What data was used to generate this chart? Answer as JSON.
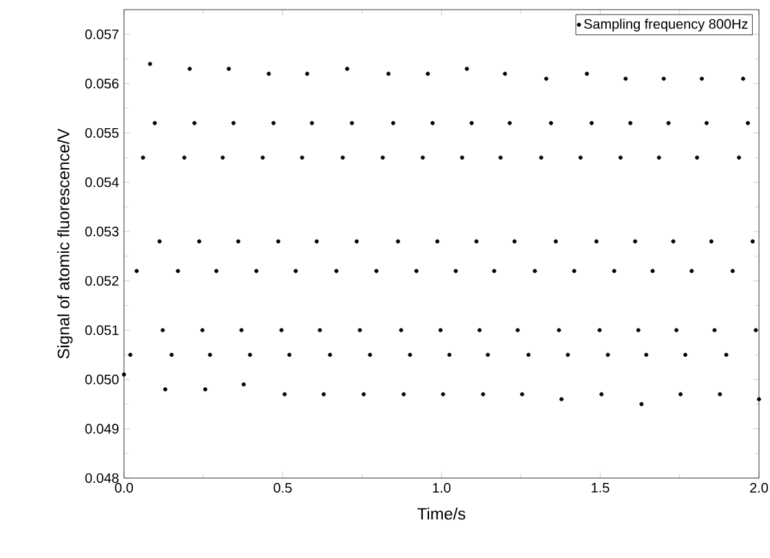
{
  "chart_data": {
    "type": "scatter",
    "xlabel": "Time/s",
    "ylabel": "Signal of atomic fluorescence/V",
    "xlim": [
      0,
      2.0
    ],
    "ylim": [
      0.048,
      0.0575
    ],
    "xticks": [
      {
        "value": 0,
        "label": "0.0"
      },
      0.5,
      {
        "value": 1,
        "label": "1.0"
      },
      1.5,
      {
        "value": 2,
        "label": "2.0"
      }
    ],
    "yticks": [
      0.048,
      0.049,
      {
        "value": 0.05,
        "label": "0.050"
      },
      0.051,
      0.052,
      0.053,
      0.054,
      0.055,
      0.056,
      0.057
    ],
    "legend": "top right",
    "marker": "circle",
    "grid": false,
    "series": [
      {
        "name": "Sampling frequency 800Hz",
        "color": "#000000",
        "x": [
          0,
          0.02,
          0.04,
          0.06,
          0.082,
          0.097,
          0.112,
          0.122,
          0.13,
          0.15,
          0.17,
          0.19,
          0.207,
          0.222,
          0.237,
          0.247,
          0.256,
          0.271,
          0.291,
          0.311,
          0.33,
          0.345,
          0.36,
          0.37,
          0.377,
          0.397,
          0.417,
          0.437,
          0.456,
          0.471,
          0.486,
          0.496,
          0.506,
          0.521,
          0.541,
          0.561,
          0.577,
          0.592,
          0.607,
          0.617,
          0.629,
          0.649,
          0.669,
          0.689,
          0.703,
          0.718,
          0.733,
          0.743,
          0.755,
          0.775,
          0.795,
          0.815,
          0.833,
          0.848,
          0.863,
          0.873,
          0.881,
          0.901,
          0.921,
          0.941,
          0.957,
          0.972,
          0.987,
          0.997,
          1.005,
          1.025,
          1.045,
          1.065,
          1.08,
          1.095,
          1.11,
          1.12,
          1.131,
          1.146,
          1.166,
          1.186,
          1.2,
          1.215,
          1.23,
          1.24,
          1.254,
          1.274,
          1.294,
          1.314,
          1.33,
          1.345,
          1.36,
          1.37,
          1.378,
          1.398,
          1.418,
          1.438,
          1.458,
          1.473,
          1.488,
          1.498,
          1.504,
          1.524,
          1.544,
          1.564,
          1.58,
          1.595,
          1.61,
          1.62,
          1.63,
          1.645,
          1.665,
          1.685,
          1.7,
          1.715,
          1.73,
          1.74,
          1.753,
          1.768,
          1.788,
          1.805,
          1.82,
          1.835,
          1.85,
          1.86,
          1.877,
          1.897,
          1.917,
          1.937,
          1.95,
          1.965,
          1.98,
          1.99,
          2.0
        ],
        "values": [
          0.0501,
          0.0505,
          0.0522,
          0.0545,
          0.0564,
          0.0552,
          0.0528,
          0.051,
          0.0498,
          0.0505,
          0.0522,
          0.0545,
          0.0563,
          0.0552,
          0.0528,
          0.051,
          0.0498,
          0.0505,
          0.0522,
          0.0545,
          0.0563,
          0.0552,
          0.0528,
          0.051,
          0.0499,
          0.0505,
          0.0522,
          0.0545,
          0.0562,
          0.0552,
          0.0528,
          0.051,
          0.0497,
          0.0505,
          0.0522,
          0.0545,
          0.0562,
          0.0552,
          0.0528,
          0.051,
          0.0497,
          0.0505,
          0.0522,
          0.0545,
          0.0563,
          0.0552,
          0.0528,
          0.051,
          0.0497,
          0.0505,
          0.0522,
          0.0545,
          0.0562,
          0.0552,
          0.0528,
          0.051,
          0.0497,
          0.0505,
          0.0522,
          0.0545,
          0.0562,
          0.0552,
          0.0528,
          0.051,
          0.0497,
          0.0505,
          0.0522,
          0.0545,
          0.0563,
          0.0552,
          0.0528,
          0.051,
          0.0497,
          0.0505,
          0.0522,
          0.0545,
          0.0562,
          0.0552,
          0.0528,
          0.051,
          0.0497,
          0.0505,
          0.0522,
          0.0545,
          0.0561,
          0.0552,
          0.0528,
          0.051,
          0.0496,
          0.0505,
          0.0522,
          0.0545,
          0.0562,
          0.0552,
          0.0528,
          0.051,
          0.0497,
          0.0505,
          0.0522,
          0.0545,
          0.0561,
          0.0552,
          0.0528,
          0.051,
          0.0495,
          0.0505,
          0.0522,
          0.0545,
          0.0561,
          0.0552,
          0.0528,
          0.051,
          0.0497,
          0.0505,
          0.0522,
          0.0545,
          0.0561,
          0.0552,
          0.0528,
          0.051,
          0.0497,
          0.0505,
          0.0522,
          0.0545,
          0.0561,
          0.0552,
          0.0528,
          0.051,
          0.0496
        ]
      }
    ]
  }
}
